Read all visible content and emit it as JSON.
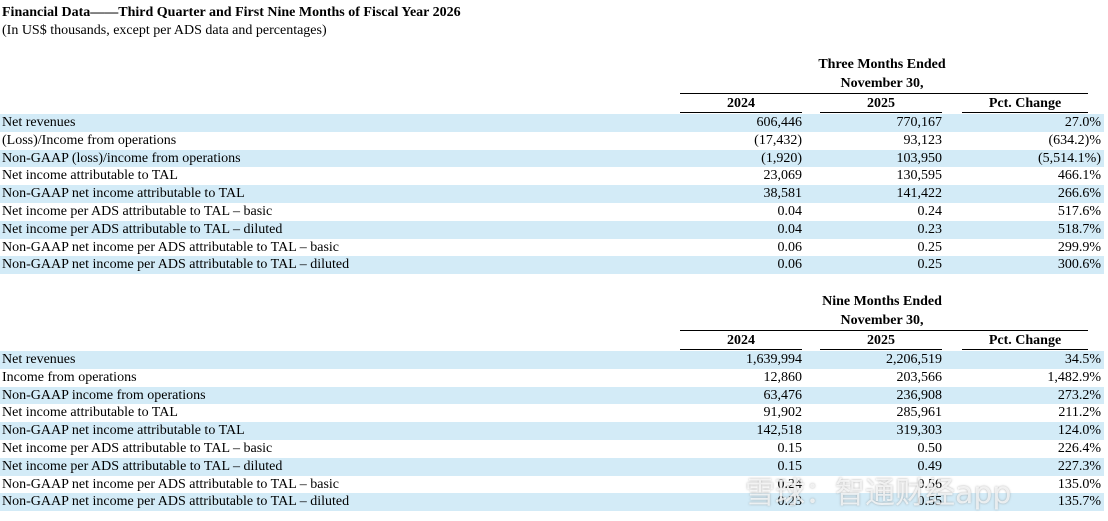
{
  "header": {
    "title": "Financial Data——Third Quarter and First Nine Months of Fiscal Year 2026",
    "subtitle": "(In US$ thousands, except per ADS data and percentages)"
  },
  "tables": [
    {
      "period": "Three Months Ended",
      "date": "November 30,",
      "columns": [
        "2024",
        "2025",
        "Pct. Change"
      ],
      "rows": [
        [
          "Net revenues",
          "606,446",
          "770,167",
          "27.0%"
        ],
        [
          "(Loss)/Income from operations",
          "(17,432)",
          "93,123",
          "(634.2)%"
        ],
        [
          "Non-GAAP (loss)/income from operations",
          "(1,920)",
          "103,950",
          "(5,514.1%)"
        ],
        [
          "Net income attributable to TAL",
          "23,069",
          "130,595",
          "466.1%"
        ],
        [
          "Non-GAAP net income attributable to TAL",
          "38,581",
          "141,422",
          "266.6%"
        ],
        [
          "Net income per ADS attributable to TAL – basic",
          "0.04",
          "0.24",
          "517.6%"
        ],
        [
          "Net income per ADS attributable to TAL – diluted",
          "0.04",
          "0.23",
          "518.7%"
        ],
        [
          "Non-GAAP net income per ADS attributable to TAL – basic",
          "0.06",
          "0.25",
          "299.9%"
        ],
        [
          "Non-GAAP net income per ADS attributable to TAL – diluted",
          "0.06",
          "0.25",
          "300.6%"
        ]
      ]
    },
    {
      "period": "Nine Months Ended",
      "date": "November 30,",
      "columns": [
        "2024",
        "2025",
        "Pct. Change"
      ],
      "rows": [
        [
          "Net revenues",
          "1,639,994",
          "2,206,519",
          "34.5%"
        ],
        [
          "Income from operations",
          "12,860",
          "203,566",
          "1,482.9%"
        ],
        [
          "Non-GAAP income from operations",
          "63,476",
          "236,908",
          "273.2%"
        ],
        [
          "Net income attributable to TAL",
          "91,902",
          "285,961",
          "211.2%"
        ],
        [
          "Non-GAAP net income attributable to TAL",
          "142,518",
          "319,303",
          "124.0%"
        ],
        [
          "Net income per ADS attributable to TAL – basic",
          "0.15",
          "0.50",
          "226.4%"
        ],
        [
          "Net income per ADS attributable to TAL – diluted",
          "0.15",
          "0.49",
          "227.3%"
        ],
        [
          "Non-GAAP net income per ADS attributable to TAL – basic",
          "0.24",
          "0.56",
          "135.0%"
        ],
        [
          "Non-GAAP net income per ADS attributable to TAL – diluted",
          "0.23",
          "0.55",
          "135.7%"
        ]
      ]
    }
  ],
  "watermark": "雪球：智通财经app"
}
